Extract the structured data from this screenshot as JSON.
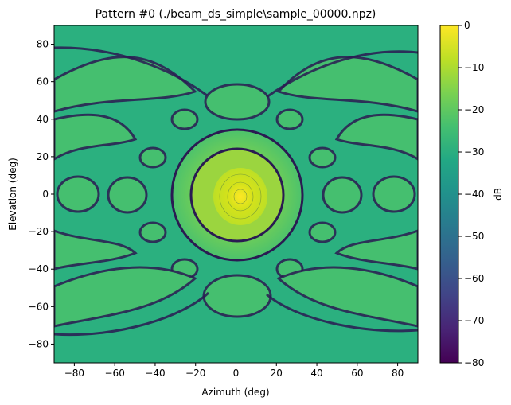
{
  "chart_data": {
    "type": "heatmap",
    "title": "Pattern #0 (./beam_ds_simple\\sample_00000.npz)",
    "xlabel": "Azimuth (deg)",
    "ylabel": "Elevation (deg)",
    "xlim": [
      -90,
      90
    ],
    "ylim": [
      -90,
      90
    ],
    "xticks": [
      -80,
      -60,
      -40,
      -20,
      0,
      20,
      40,
      60,
      80
    ],
    "yticks": [
      -80,
      -60,
      -40,
      -20,
      0,
      20,
      40,
      60,
      80
    ],
    "colorbar": {
      "label": "dB",
      "range": [
        -80,
        0
      ],
      "ticks": [
        0,
        -10,
        -20,
        -30,
        -40,
        -50,
        -60,
        -70,
        -80
      ],
      "colormap": "viridis"
    },
    "main_beam": {
      "azimuth": 2,
      "elevation": -2,
      "value_db": 0
    },
    "grid": false
  }
}
